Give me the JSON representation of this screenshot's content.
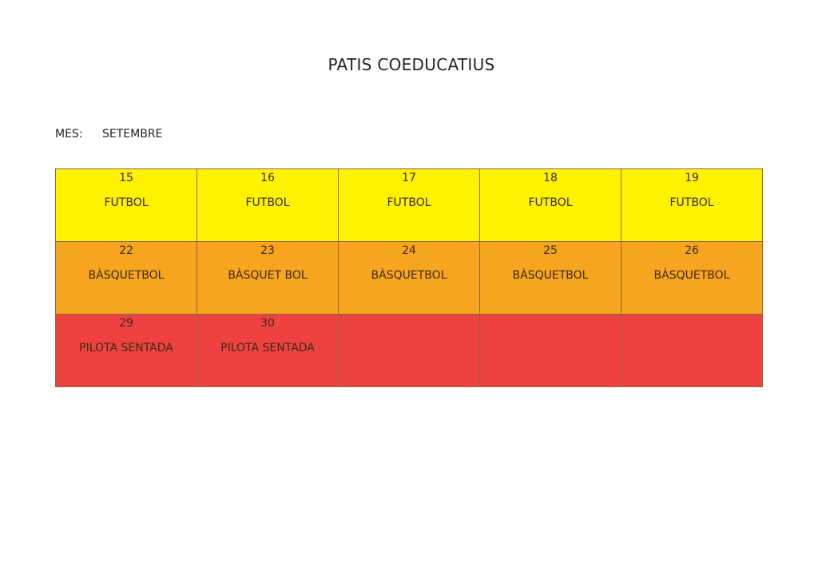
{
  "title": "PATIS COEDUCATIUS",
  "month_label": "MES:",
  "month_value": "SETEMBRE",
  "colors": {
    "week1": "#FFF200",
    "week2": "#F7A51E",
    "week3": "#EF4240"
  },
  "weeks": [
    [
      {
        "day": "15",
        "activity": "FUTBOL"
      },
      {
        "day": "16",
        "activity": "FUTBOL"
      },
      {
        "day": "17",
        "activity": "FUTBOL"
      },
      {
        "day": "18",
        "activity": "FUTBOL"
      },
      {
        "day": "19",
        "activity": "FUTBOL"
      }
    ],
    [
      {
        "day": "22",
        "activity": "BÀSQUETBOL"
      },
      {
        "day": "23",
        "activity": "BÀSQUET BOL"
      },
      {
        "day": "24",
        "activity": "BÀSQUETBOL"
      },
      {
        "day": "25",
        "activity": "BÀSQUETBOL"
      },
      {
        "day": "26",
        "activity": "BÀSQUETBOL"
      }
    ],
    [
      {
        "day": "29",
        "activity": "PILOTA SENTADA"
      },
      {
        "day": "30",
        "activity": "PILOTA SENTADA"
      },
      {
        "day": "",
        "activity": ""
      },
      {
        "day": "",
        "activity": ""
      },
      {
        "day": "",
        "activity": ""
      }
    ]
  ]
}
